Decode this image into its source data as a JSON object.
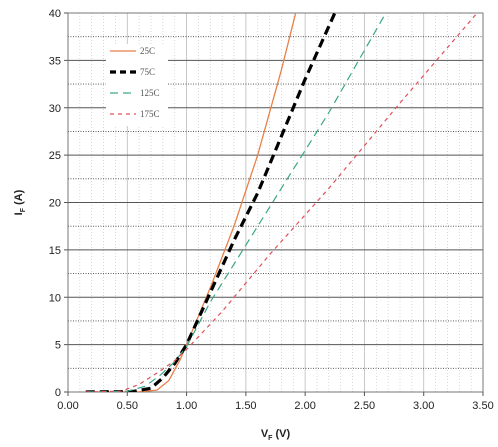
{
  "chart_data": {
    "type": "line",
    "xlabel": "V",
    "xlabel_sub": "F",
    "xlabel_unit": "(V)",
    "ylabel": "I",
    "ylabel_sub": "F",
    "ylabel_unit": "(A)",
    "xlim": [
      0,
      3.5
    ],
    "ylim": [
      0,
      40
    ],
    "x_ticks": [
      0,
      0.5,
      1.0,
      1.5,
      2.0,
      2.5,
      3.0,
      3.5
    ],
    "x_tick_labels": [
      "0.00",
      "0.50",
      "1.00",
      "1.50",
      "2.00",
      "2.50",
      "3.00",
      "3.50"
    ],
    "y_ticks": [
      0,
      5,
      10,
      15,
      20,
      25,
      30,
      35,
      40
    ],
    "y_tick_labels": [
      "0",
      "5",
      "10",
      "15",
      "20",
      "25",
      "30",
      "35",
      "40"
    ],
    "grid": true,
    "legend_position": "top-left",
    "series": [
      {
        "name": "25C",
        "color": "#e8804a",
        "style": "solid",
        "points": [
          [
            0.15,
            0
          ],
          [
            0.6,
            0.02
          ],
          [
            0.75,
            0.2
          ],
          [
            0.85,
            1.2
          ],
          [
            0.95,
            3.5
          ],
          [
            1.05,
            6.5
          ],
          [
            1.2,
            11
          ],
          [
            1.4,
            17.5
          ],
          [
            1.6,
            25
          ],
          [
            1.8,
            34
          ],
          [
            1.92,
            40
          ]
        ]
      },
      {
        "name": "75C",
        "color": "#000000",
        "style": "heavy-dash",
        "points": [
          [
            0.15,
            0
          ],
          [
            0.55,
            0.05
          ],
          [
            0.7,
            0.4
          ],
          [
            0.8,
            1.5
          ],
          [
            0.9,
            3.0
          ],
          [
            1.0,
            5.0
          ],
          [
            1.2,
            10.5
          ],
          [
            1.4,
            16
          ],
          [
            1.6,
            21
          ],
          [
            1.8,
            27
          ],
          [
            2.0,
            33
          ],
          [
            2.25,
            40
          ]
        ]
      },
      {
        "name": "125C",
        "color": "#3aa68a",
        "style": "long-dash",
        "points": [
          [
            0.15,
            0
          ],
          [
            0.5,
            0.08
          ],
          [
            0.65,
            0.6
          ],
          [
            0.78,
            1.8
          ],
          [
            0.9,
            3.2
          ],
          [
            1.0,
            4.8
          ],
          [
            1.2,
            9.5
          ],
          [
            1.5,
            15.5
          ],
          [
            1.8,
            21.5
          ],
          [
            2.2,
            29.5
          ],
          [
            2.68,
            40
          ]
        ]
      },
      {
        "name": "175C",
        "color": "#e0505a",
        "style": "short-dash",
        "points": [
          [
            0.15,
            0
          ],
          [
            0.45,
            0.1
          ],
          [
            0.6,
            0.8
          ],
          [
            0.75,
            2.0
          ],
          [
            0.9,
            3.3
          ],
          [
            1.0,
            4.5
          ],
          [
            1.3,
            8.5
          ],
          [
            1.7,
            14.5
          ],
          [
            2.2,
            21.5
          ],
          [
            2.8,
            30.5
          ],
          [
            3.45,
            40
          ]
        ]
      }
    ]
  }
}
